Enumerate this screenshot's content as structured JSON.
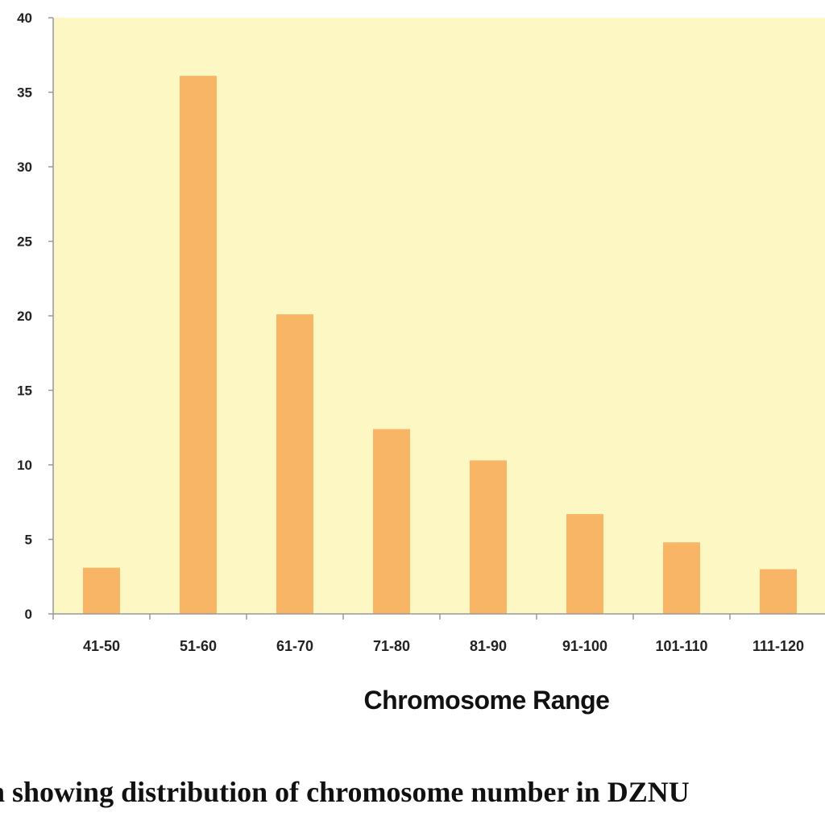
{
  "chart_data": {
    "type": "bar",
    "categories": [
      "41-50",
      "51-60",
      "61-70",
      "71-80",
      "81-90",
      "91-100",
      "101-110",
      "111-120"
    ],
    "values": [
      3.1,
      36.1,
      20.1,
      12.4,
      10.3,
      6.7,
      4.8,
      3.0
    ],
    "xlabel": "Chromosome Range",
    "ylabel": "",
    "ylim": [
      0,
      40
    ],
    "yticks": [
      "0",
      "5",
      "10",
      "15",
      "20",
      "25",
      "30",
      "35",
      "40"
    ],
    "grid": false,
    "legend": "none",
    "colors": {
      "bar": "#f7b565",
      "plot_bg": "#fdf7c4",
      "axis": "#999999"
    }
  },
  "caption": "h showing distribution of chromosome number in DZNU"
}
